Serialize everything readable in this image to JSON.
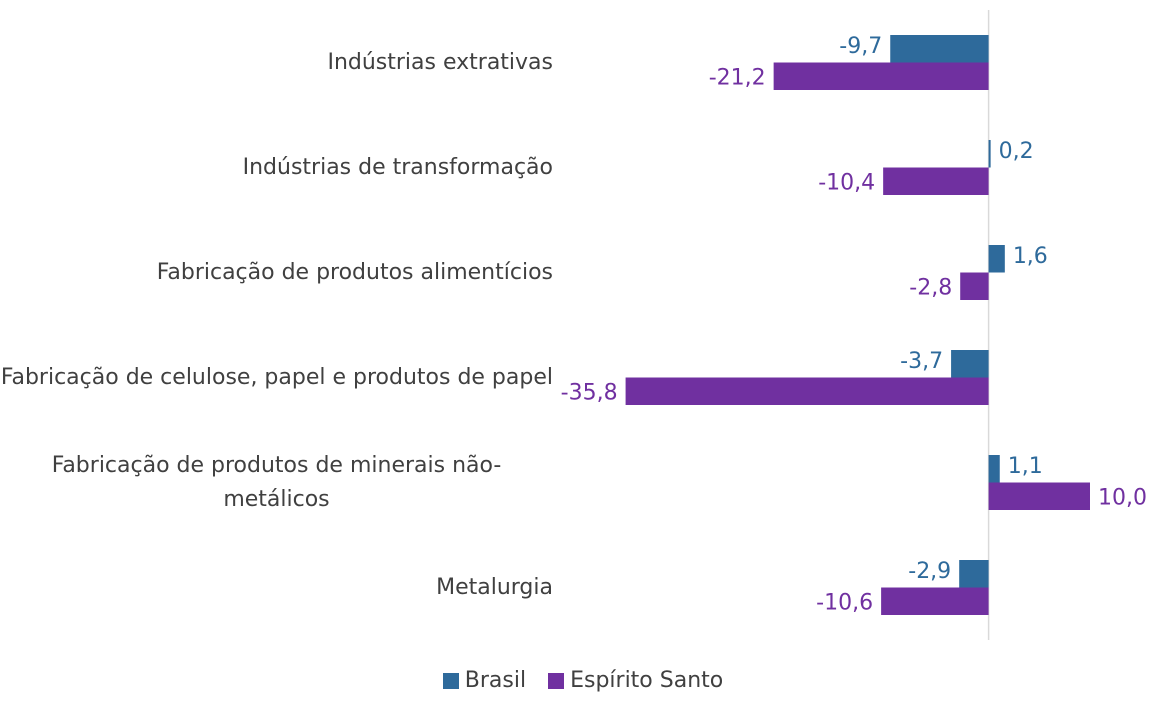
{
  "chart_data": {
    "type": "hbar",
    "categories": [
      "Indústrias extrativas",
      "Indústrias de transformação",
      "Fabricação de produtos alimentícios",
      "Fabricação de celulose, papel e produtos de papel",
      "Fabricação de produtos de minerais não-metálicos",
      "Metalurgia"
    ],
    "series": [
      {
        "name": "Brasil",
        "color": "#2e6a9b",
        "values": [
          -9.7,
          0.2,
          1.6,
          -3.7,
          1.1,
          -2.9
        ],
        "value_labels": [
          "-9,7",
          "0,2",
          "1,6",
          "-3,7",
          "1,1",
          "-2,9"
        ]
      },
      {
        "name": "Espírito Santo",
        "color": "#7030a0",
        "values": [
          -21.2,
          -10.4,
          -2.8,
          -35.8,
          10.0,
          -10.6
        ],
        "value_labels": [
          "-21,2",
          "-10,4",
          "-2,8",
          "-35,8",
          "10,0",
          "-10,6"
        ]
      }
    ],
    "xlim": [
      -40,
      10
    ],
    "legend": "bottom"
  }
}
